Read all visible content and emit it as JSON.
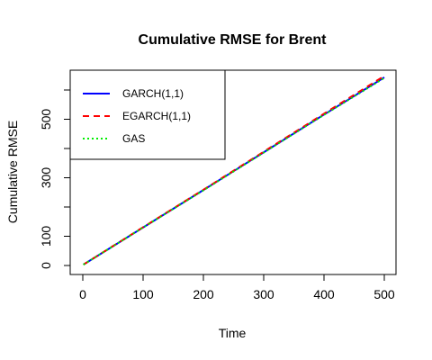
{
  "chart_data": {
    "type": "line",
    "title": "Cumulative RMSE for Brent",
    "xlabel": "Time",
    "ylabel": "Cumulative RMSE",
    "xlim": [
      0,
      500
    ],
    "ylim": [
      0,
      640
    ],
    "x_ticks": [
      0,
      100,
      200,
      300,
      400,
      500
    ],
    "x_tick_labels": [
      "0",
      "100",
      "200",
      "300",
      "400",
      "500"
    ],
    "y_ticks": [
      0,
      100,
      300,
      500
    ],
    "y_tick_labels": [
      "0",
      "100",
      "300",
      "500"
    ],
    "grid": false,
    "legend_position": "top-left",
    "x": [
      1,
      100,
      200,
      300,
      400,
      500
    ],
    "series": [
      {
        "name": "GARCH(1,1)",
        "color": "#0000ff",
        "dash": "solid",
        "values": [
          3,
          130,
          258,
          387,
          516,
          643
        ]
      },
      {
        "name": "EGARCH(1,1)",
        "color": "#ff0000",
        "dash": "dashed",
        "values": [
          3,
          131,
          259,
          389,
          519,
          648
        ]
      },
      {
        "name": "GAS",
        "color": "#00ee00",
        "dash": "dotted",
        "values": [
          3,
          130,
          257,
          386,
          515,
          641
        ]
      }
    ]
  }
}
